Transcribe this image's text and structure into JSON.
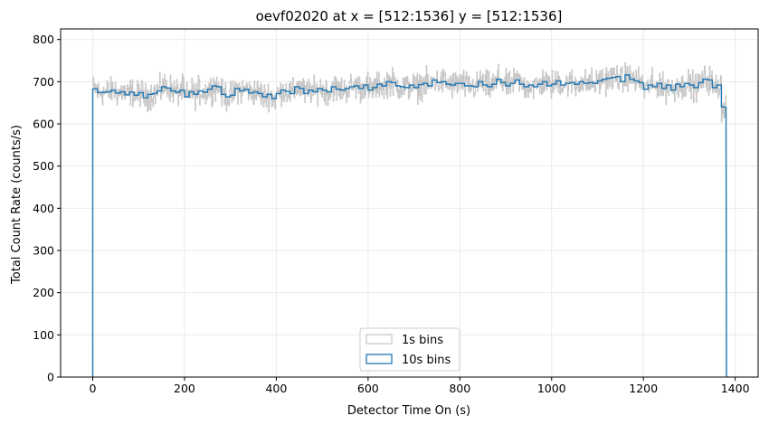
{
  "chart_data": {
    "type": "line",
    "title": "oevf02020 at x = [512:1536] y = [512:1536]",
    "xlabel": "Detector Time On (s)",
    "ylabel": "Total Count Rate (counts/s)",
    "xlim": [
      -70,
      1450
    ],
    "ylim": [
      0,
      825
    ],
    "x_ticks": [
      0,
      200,
      400,
      600,
      800,
      1000,
      1200,
      1400
    ],
    "y_ticks": [
      0,
      100,
      200,
      300,
      400,
      500,
      600,
      700,
      800
    ],
    "grid": true,
    "legend": {
      "placement": "lower-center"
    },
    "series": [
      {
        "name": "1s bins",
        "color": "#c8c8c8",
        "style": "step",
        "x_range": [
          0,
          1381
        ],
        "step": 1,
        "noise_amplitude": 25,
        "note_values": "follows 10s series with ~±25 counts/s scatter"
      },
      {
        "name": "10s bins",
        "color": "#1f77b4",
        "style": "step",
        "x_start": 0,
        "bin_width": 10,
        "values": [
          683,
          674,
          675,
          676,
          680,
          673,
          676,
          669,
          675,
          668,
          674,
          662,
          670,
          672,
          678,
          688,
          685,
          678,
          675,
          680,
          664,
          676,
          670,
          678,
          675,
          682,
          690,
          688,
          670,
          664,
          668,
          684,
          678,
          682,
          673,
          676,
          672,
          664,
          670,
          660,
          672,
          680,
          677,
          672,
          688,
          684,
          672,
          680,
          676,
          684,
          680,
          676,
          688,
          682,
          680,
          684,
          688,
          690,
          684,
          692,
          680,
          686,
          694,
          690,
          700,
          698,
          690,
          688,
          686,
          692,
          686,
          693,
          696,
          690,
          704,
          698,
          700,
          694,
          692,
          696,
          696,
          690,
          690,
          688,
          700,
          692,
          688,
          694,
          706,
          698,
          690,
          696,
          704,
          694,
          688,
          692,
          688,
          694,
          700,
          690,
          694,
          702,
          692,
          696,
          698,
          694,
          700,
          696,
          698,
          696,
          702,
          706,
          708,
          710,
          712,
          700,
          716,
          706,
          702,
          698,
          682,
          692,
          688,
          696,
          684,
          692,
          680,
          694,
          688,
          696,
          692,
          686,
          698,
          706,
          704,
          686,
          692,
          640
        ],
        "final_value": 640,
        "x_end": 1381
      }
    ]
  }
}
